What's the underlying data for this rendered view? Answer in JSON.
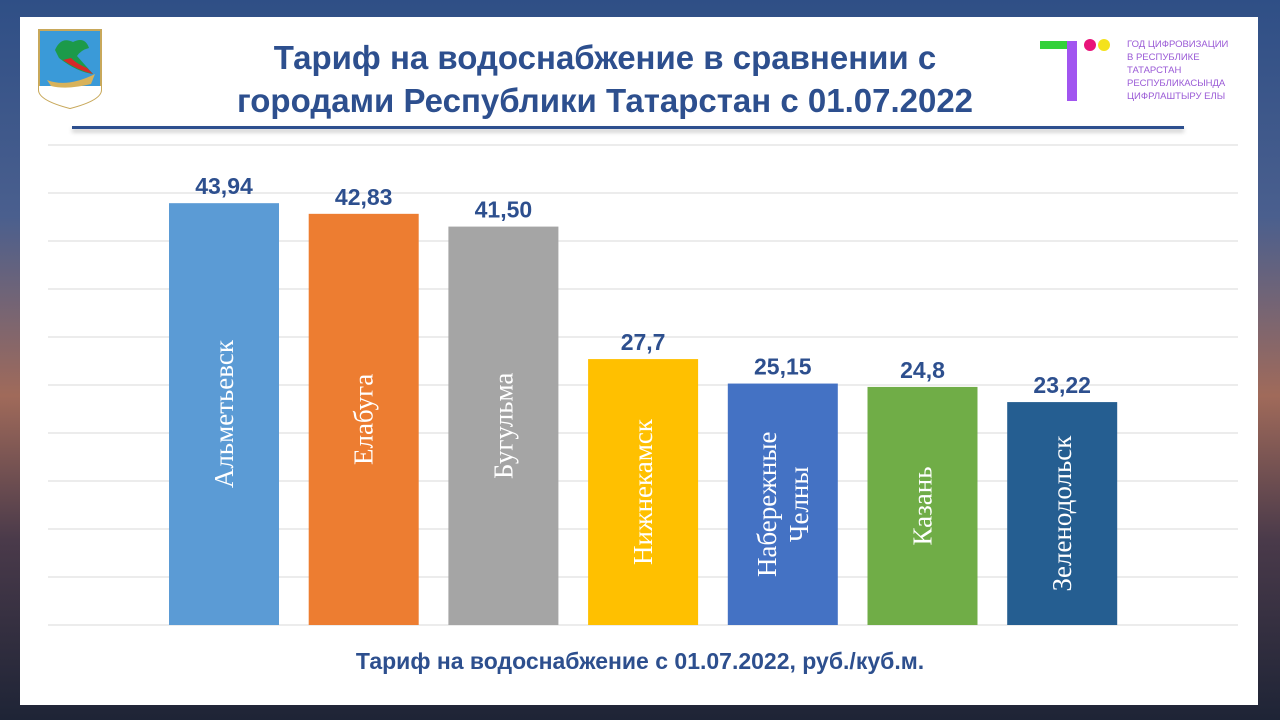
{
  "header": {
    "title_line1": "Тариф на водоснабжение в сравнении с",
    "title_line2": "городами Республики Татарстан с 01.07.2022",
    "logo_text": [
      "ГОД ЦИФРОВИЗАЦИИ",
      "В РЕСПУБЛИКЕ",
      "ТАТАРСТАН",
      "РЕСПУБЛИКАСЫНДА",
      "ЦИФРЛАШТЫРУ ЕЛЫ"
    ]
  },
  "chart_data": {
    "type": "bar",
    "title": "Тариф на водоснабжение в сравнении с городами Республики Татарстан с 01.07.2022",
    "xlabel": "Тариф на водоснабжение с 01.07.2022,  руб./куб.м.",
    "ylabel": "",
    "ylim": [
      0,
      50
    ],
    "grid_step": 5,
    "grid": true,
    "categories": [
      "Альметьевск",
      "Елабуга",
      "Бугульма",
      "Нижнекамск",
      "Набережные Челны",
      "Казань",
      "Зеленодольск"
    ],
    "category_lines": [
      [
        "Альметьевск"
      ],
      [
        "Елабуга"
      ],
      [
        "Бугульма"
      ],
      [
        "Нижнекамск"
      ],
      [
        "Набережные",
        "Челны"
      ],
      [
        "Казань"
      ],
      [
        "Зеленодольск"
      ]
    ],
    "values": [
      43.94,
      42.83,
      41.5,
      27.7,
      25.15,
      24.8,
      23.22
    ],
    "data_labels": [
      "43,94",
      "42,83",
      "41,50",
      "27,7",
      "25,15",
      "24,8",
      "23,22"
    ],
    "colors": [
      "#5b9bd5",
      "#ed7d31",
      "#a5a5a5",
      "#ffc000",
      "#4472c4",
      "#70ad47",
      "#255e91"
    ]
  }
}
